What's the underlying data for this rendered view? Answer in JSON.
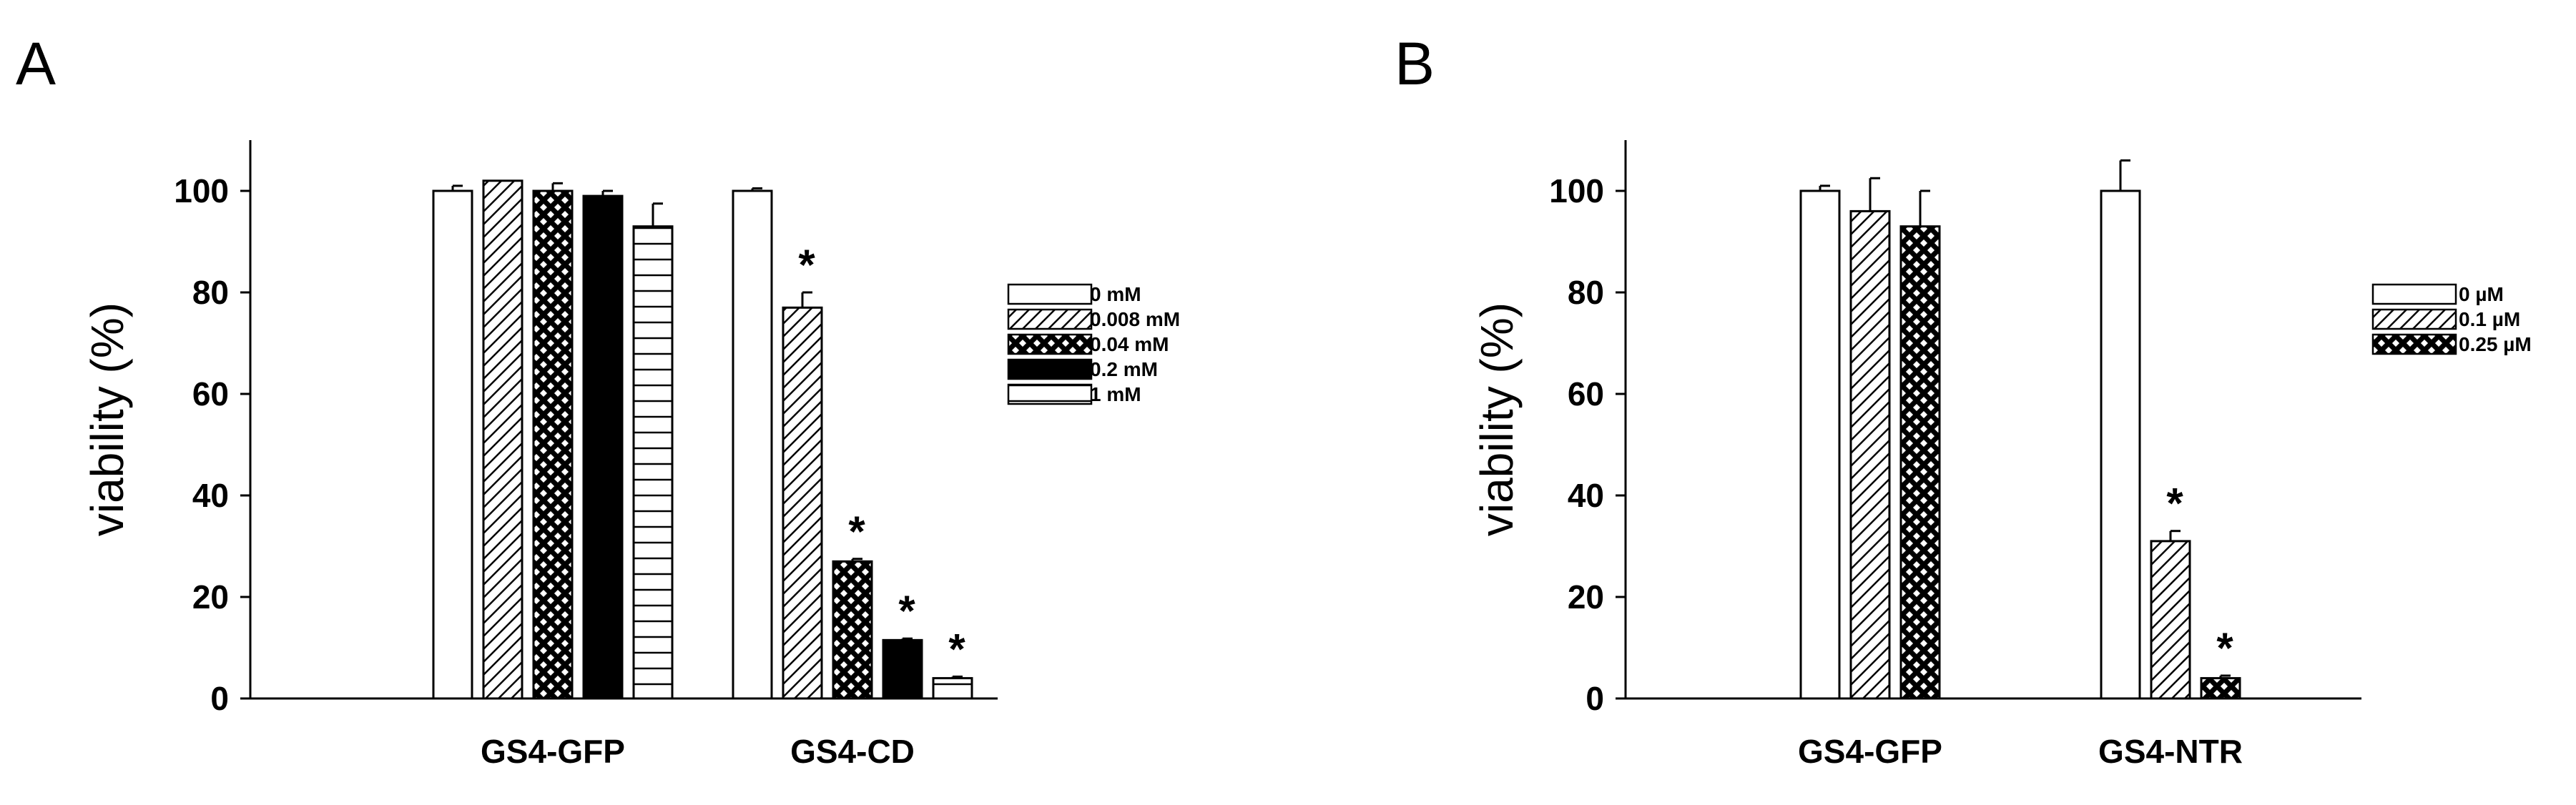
{
  "chart_data": [
    {
      "type": "bar",
      "panel": "A",
      "ylabel": "viability (%)",
      "ylim": [
        0,
        110
      ],
      "yticks": [
        0,
        20,
        40,
        60,
        80,
        100
      ],
      "categories": [
        "GS4-GFP",
        "GS4-CD"
      ],
      "legend_position": "right",
      "series": [
        {
          "name": "0 mM",
          "pattern": "white",
          "values": [
            100,
            100
          ],
          "errors": [
            1,
            0.5
          ],
          "significant": [
            false,
            false
          ]
        },
        {
          "name": "0.008 mM",
          "pattern": "diagonal",
          "values": [
            102,
            77
          ],
          "errors": [
            0,
            3
          ],
          "significant": [
            false,
            true
          ]
        },
        {
          "name": "0.04 mM",
          "pattern": "crosshatch",
          "values": [
            100,
            27
          ],
          "errors": [
            1.5,
            0.5
          ],
          "significant": [
            false,
            true
          ]
        },
        {
          "name": "0.2 mM",
          "pattern": "black",
          "values": [
            99,
            11.5
          ],
          "errors": [
            1,
            0.3
          ],
          "significant": [
            false,
            true
          ]
        },
        {
          "name": "1 mM",
          "pattern": "horizontal",
          "values": [
            93,
            4
          ],
          "errors": [
            4.5,
            0.3
          ],
          "significant": [
            false,
            true
          ]
        }
      ],
      "annotation": "*"
    },
    {
      "type": "bar",
      "panel": "B",
      "ylabel": "viability (%)",
      "ylim": [
        0,
        110
      ],
      "yticks": [
        0,
        20,
        40,
        60,
        80,
        100
      ],
      "categories": [
        "GS4-GFP",
        "GS4-NTR"
      ],
      "legend_position": "right",
      "series": [
        {
          "name": "0 µM",
          "pattern": "white",
          "values": [
            100,
            100
          ],
          "errors": [
            1,
            6
          ],
          "significant": [
            false,
            false
          ]
        },
        {
          "name": "0.1 µM",
          "pattern": "diagonal",
          "values": [
            96,
            31
          ],
          "errors": [
            6.5,
            2
          ],
          "significant": [
            false,
            true
          ]
        },
        {
          "name": "0.25 µM",
          "pattern": "crosshatch",
          "values": [
            93,
            4
          ],
          "errors": [
            7,
            0.5
          ],
          "significant": [
            false,
            true
          ]
        }
      ],
      "annotation": "*"
    }
  ]
}
